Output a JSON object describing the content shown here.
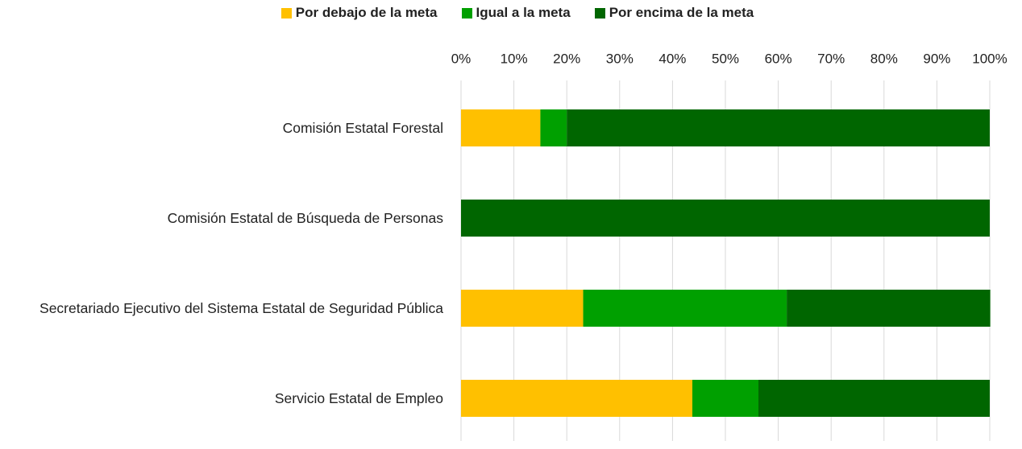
{
  "chart_data": {
    "type": "bar",
    "orientation": "horizontal",
    "stacked": true,
    "categories": [
      "Comisión Estatal Forestal",
      "Comisión Estatal de Búsqueda de Personas",
      "Secretariado Ejecutivo del Sistema Estatal de Seguridad Pública",
      "Servicio Estatal de Empleo"
    ],
    "series": [
      {
        "name": "Por debajo de la meta",
        "color": "#ffc000",
        "values": [
          15,
          0,
          23.1,
          43.75
        ]
      },
      {
        "name": "Igual a la meta",
        "color": "#00a000",
        "values": [
          5,
          0,
          38.5,
          12.5
        ]
      },
      {
        "name": "Por encima de la meta",
        "color": "#006600",
        "values": [
          80,
          100,
          38.5,
          43.75
        ]
      }
    ],
    "xlim": [
      0,
      100
    ],
    "xticks": [
      {
        "value": 0,
        "label": "0%"
      },
      {
        "value": 10,
        "label": "10%"
      },
      {
        "value": 20,
        "label": "20%"
      },
      {
        "value": 30,
        "label": "30%"
      },
      {
        "value": 40,
        "label": "40%"
      },
      {
        "value": 50,
        "label": "50%"
      },
      {
        "value": 60,
        "label": "60%"
      },
      {
        "value": 70,
        "label": "70%"
      },
      {
        "value": 80,
        "label": "80%"
      },
      {
        "value": 90,
        "label": "90%"
      },
      {
        "value": 100,
        "label": "100%"
      }
    ],
    "grid": true,
    "legend": "top",
    "xaxis_position": "top"
  }
}
